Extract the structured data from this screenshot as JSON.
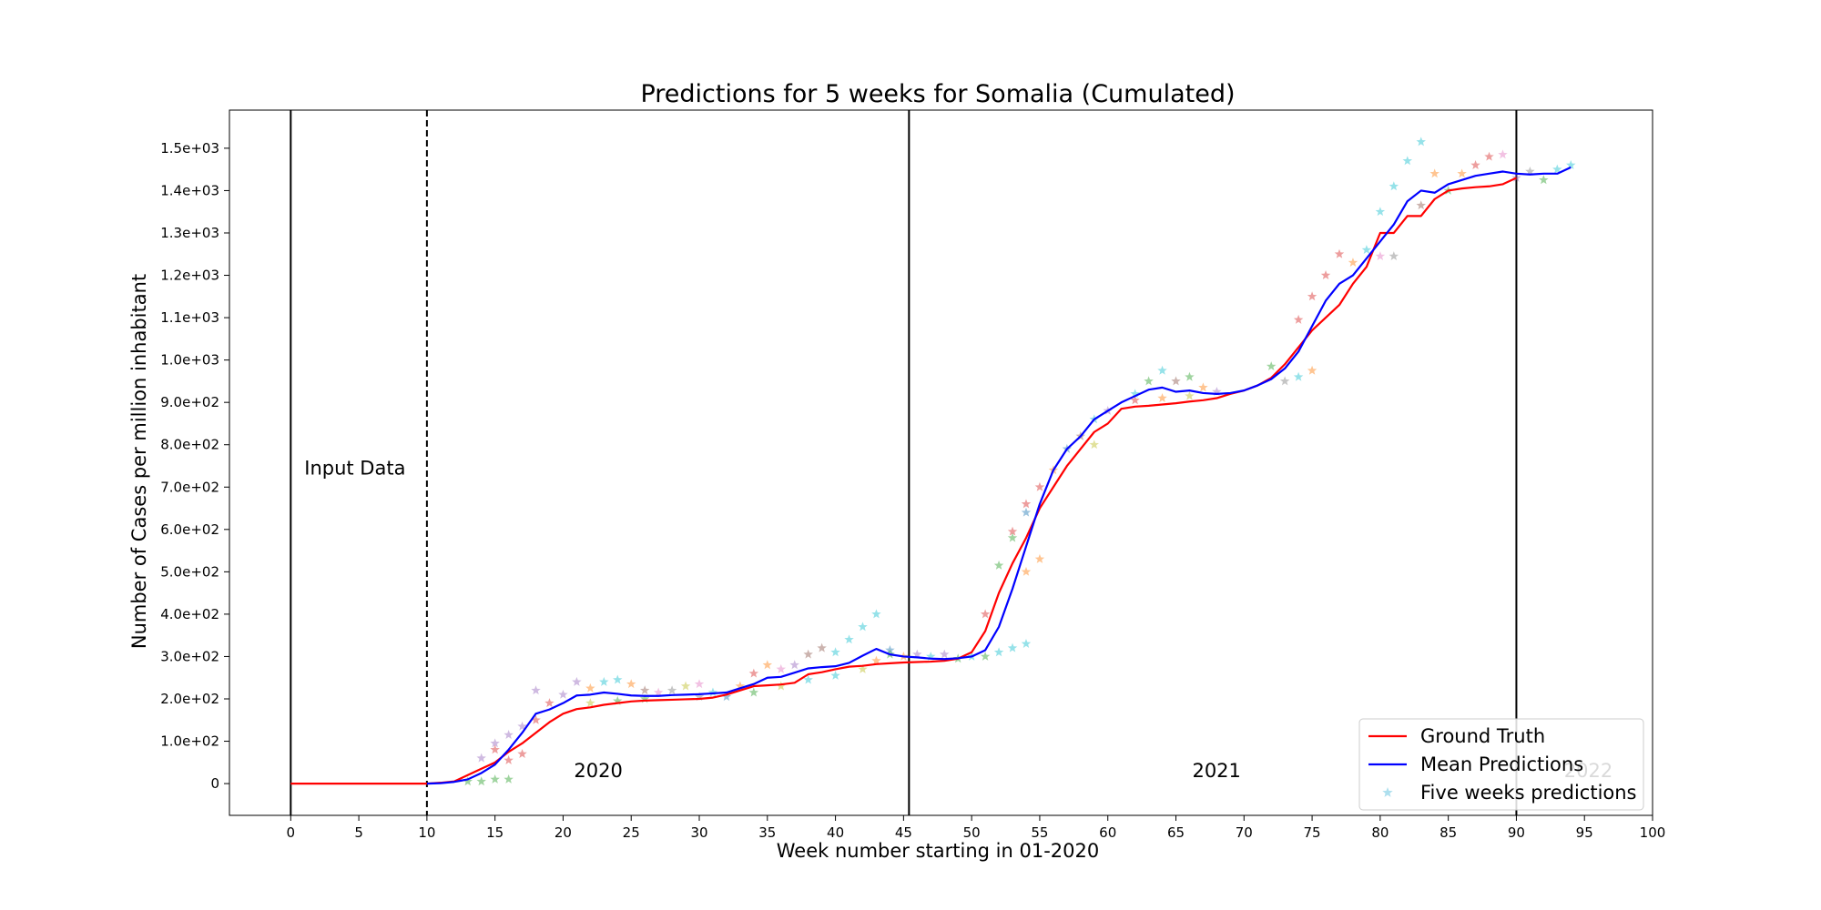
{
  "chart_data": {
    "type": "line",
    "title": "Predictions for 5 weeks for Somalia (Cumulated)",
    "xlabel": "Week number starting in 01-2020",
    "ylabel": "Number of Cases per million inhabitant",
    "xlim": [
      -4.5,
      100
    ],
    "ylim": [
      -75,
      1590
    ],
    "x_ticks": [
      0,
      5,
      10,
      15,
      20,
      25,
      30,
      35,
      40,
      45,
      50,
      55,
      60,
      65,
      70,
      75,
      80,
      85,
      90,
      95,
      100
    ],
    "y_ticks": [
      {
        "value": 0,
        "label": "0"
      },
      {
        "value": 100,
        "label": "1.0e+02"
      },
      {
        "value": 200,
        "label": "2.0e+02"
      },
      {
        "value": 300,
        "label": "3.0e+02"
      },
      {
        "value": 400,
        "label": "4.0e+02"
      },
      {
        "value": 500,
        "label": "5.0e+02"
      },
      {
        "value": 600,
        "label": "6.0e+02"
      },
      {
        "value": 700,
        "label": "7.0e+02"
      },
      {
        "value": 800,
        "label": "8.0e+02"
      },
      {
        "value": 900,
        "label": "9.0e+02"
      },
      {
        "value": 1000,
        "label": "1.0e+03"
      },
      {
        "value": 1100,
        "label": "1.1e+03"
      },
      {
        "value": 1200,
        "label": "1.2e+03"
      },
      {
        "value": 1300,
        "label": "1.3e+03"
      },
      {
        "value": 1400,
        "label": "1.4e+03"
      },
      {
        "value": 1500,
        "label": "1.5e+03"
      }
    ],
    "legend_position": "bottom-right",
    "grid": false,
    "vertical_lines": [
      {
        "x": 0,
        "style": "solid"
      },
      {
        "x": 10,
        "style": "dashed"
      },
      {
        "x": 45.4,
        "style": "solid"
      },
      {
        "x": 90,
        "style": "solid"
      }
    ],
    "annotations": [
      {
        "text": "Input Data",
        "x": 1,
        "y": 730,
        "color": "#000000"
      },
      {
        "text": "2020",
        "x": 20.8,
        "y": 15,
        "color": "#000000"
      },
      {
        "text": "2021",
        "x": 66.2,
        "y": 15,
        "color": "#000000"
      },
      {
        "text": "2022",
        "x": 93.5,
        "y": 15,
        "color": "#cfcfcf"
      }
    ],
    "series": [
      {
        "name": "Ground Truth",
        "color": "#ff0000",
        "x": [
          0,
          1,
          2,
          3,
          4,
          5,
          6,
          7,
          8,
          9,
          10,
          11,
          12,
          13,
          14,
          15,
          16,
          17,
          18,
          19,
          20,
          21,
          22,
          23,
          24,
          25,
          26,
          27,
          28,
          29,
          30,
          31,
          32,
          33,
          34,
          35,
          36,
          37,
          38,
          39,
          40,
          41,
          42,
          43,
          44,
          45,
          46,
          47,
          48,
          49,
          50,
          51,
          52,
          53,
          54,
          55,
          56,
          57,
          58,
          59,
          60,
          61,
          62,
          63,
          64,
          65,
          66,
          67,
          68,
          69,
          70,
          71,
          72,
          73,
          74,
          75,
          76,
          77,
          78,
          79,
          80,
          81,
          82,
          83,
          84,
          85,
          86,
          87,
          88,
          89,
          90
        ],
        "values": [
          0,
          0,
          0,
          0,
          0,
          0,
          0,
          0,
          0,
          0,
          0,
          2,
          5,
          20,
          35,
          50,
          75,
          95,
          120,
          145,
          165,
          176,
          180,
          186,
          190,
          194,
          196,
          197,
          198,
          199,
          200,
          203,
          210,
          220,
          230,
          232,
          234,
          238,
          258,
          263,
          270,
          276,
          278,
          282,
          284,
          286,
          287,
          288,
          290,
          295,
          310,
          360,
          450,
          520,
          580,
          650,
          700,
          750,
          790,
          830,
          850,
          885,
          890,
          892,
          895,
          898,
          902,
          905,
          910,
          920,
          928,
          940,
          958,
          990,
          1030,
          1070,
          1100,
          1130,
          1180,
          1220,
          1300,
          1300,
          1340,
          1340,
          1380,
          1400,
          1405,
          1408,
          1410,
          1415,
          1430
        ]
      },
      {
        "name": "Mean Predictions",
        "color": "#0000ff",
        "x": [
          10,
          11,
          12,
          13,
          14,
          15,
          16,
          17,
          18,
          19,
          20,
          21,
          22,
          23,
          24,
          25,
          26,
          27,
          28,
          29,
          30,
          31,
          32,
          33,
          34,
          35,
          36,
          37,
          38,
          39,
          40,
          41,
          42,
          43,
          44,
          45,
          46,
          47,
          48,
          49,
          50,
          51,
          52,
          53,
          54,
          55,
          56,
          57,
          58,
          59,
          60,
          61,
          62,
          63,
          64,
          65,
          66,
          67,
          68,
          69,
          70,
          71,
          72,
          73,
          74,
          75,
          76,
          77,
          78,
          79,
          80,
          81,
          82,
          83,
          84,
          85,
          86,
          87,
          88,
          89,
          90,
          91,
          92,
          93,
          94
        ],
        "values": [
          0,
          1,
          4,
          10,
          25,
          45,
          80,
          120,
          165,
          175,
          190,
          208,
          210,
          215,
          212,
          208,
          207,
          207,
          209,
          210,
          211,
          213,
          215,
          225,
          235,
          250,
          252,
          262,
          272,
          275,
          277,
          285,
          302,
          318,
          305,
          300,
          298,
          295,
          294,
          296,
          300,
          315,
          370,
          460,
          560,
          660,
          740,
          790,
          820,
          860,
          880,
          900,
          915,
          930,
          935,
          925,
          928,
          922,
          920,
          922,
          928,
          940,
          955,
          980,
          1020,
          1080,
          1140,
          1180,
          1200,
          1240,
          1280,
          1320,
          1375,
          1400,
          1395,
          1415,
          1425,
          1435,
          1440,
          1445,
          1440,
          1438,
          1440,
          1440,
          1455
        ]
      },
      {
        "name": "Five weeks predictions",
        "color": "#5bc0de",
        "points": [
          [
            13,
            5,
            "#2ca02c"
          ],
          [
            14,
            5,
            "#2ca02c"
          ],
          [
            15,
            10,
            "#2ca02c"
          ],
          [
            16,
            10,
            "#2ca02c"
          ],
          [
            14,
            60,
            "#9467bd"
          ],
          [
            15,
            95,
            "#9467bd"
          ],
          [
            16,
            115,
            "#9467bd"
          ],
          [
            17,
            135,
            "#9467bd"
          ],
          [
            18,
            220,
            "#9467bd"
          ],
          [
            15,
            80,
            "#d62728"
          ],
          [
            16,
            55,
            "#d62728"
          ],
          [
            17,
            70,
            "#d62728"
          ],
          [
            18,
            150,
            "#d62728"
          ],
          [
            19,
            190,
            "#d62728"
          ],
          [
            20,
            210,
            "#9467bd"
          ],
          [
            21,
            240,
            "#9467bd"
          ],
          [
            22,
            225,
            "#ff7f0e"
          ],
          [
            23,
            240,
            "#17becf"
          ],
          [
            24,
            245,
            "#17becf"
          ],
          [
            25,
            235,
            "#ff7f0e"
          ],
          [
            26,
            220,
            "#8c564b"
          ],
          [
            27,
            215,
            "#e377c2"
          ],
          [
            28,
            220,
            "#7f7f7f"
          ],
          [
            29,
            230,
            "#bcbd22"
          ],
          [
            30,
            235,
            "#e377c2"
          ],
          [
            31,
            215,
            "#17becf"
          ],
          [
            32,
            205,
            "#1f77b4"
          ],
          [
            33,
            230,
            "#ff7f0e"
          ],
          [
            34,
            260,
            "#d62728"
          ],
          [
            35,
            280,
            "#ff7f0e"
          ],
          [
            36,
            270,
            "#e377c2"
          ],
          [
            37,
            280,
            "#9467bd"
          ],
          [
            38,
            305,
            "#8c564b"
          ],
          [
            39,
            320,
            "#8c564b"
          ],
          [
            40,
            310,
            "#17becf"
          ],
          [
            41,
            340,
            "#17becf"
          ],
          [
            42,
            370,
            "#17becf"
          ],
          [
            43,
            400,
            "#17becf"
          ],
          [
            44,
            315,
            "#1f77b4"
          ],
          [
            22,
            190,
            "#bcbd22"
          ],
          [
            24,
            195,
            "#2ca02c"
          ],
          [
            26,
            200,
            "#2ca02c"
          ],
          [
            30,
            205,
            "#7f7f7f"
          ],
          [
            34,
            215,
            "#2ca02c"
          ],
          [
            36,
            230,
            "#bcbd22"
          ],
          [
            38,
            245,
            "#17becf"
          ],
          [
            40,
            255,
            "#17becf"
          ],
          [
            42,
            270,
            "#bcbd22"
          ],
          [
            43,
            290,
            "#ff7f0e"
          ],
          [
            44,
            305,
            "#2ca02c"
          ],
          [
            45,
            300,
            "#ff7f0e"
          ],
          [
            46,
            305,
            "#9467bd"
          ],
          [
            47,
            300,
            "#17becf"
          ],
          [
            48,
            305,
            "#9467bd"
          ],
          [
            49,
            295,
            "#2ca02c"
          ],
          [
            50,
            300,
            "#17becf"
          ],
          [
            51,
            300,
            "#2ca02c"
          ],
          [
            52,
            310,
            "#17becf"
          ],
          [
            53,
            320,
            "#17becf"
          ],
          [
            54,
            330,
            "#17becf"
          ],
          [
            51,
            400,
            "#d62728"
          ],
          [
            52,
            515,
            "#2ca02c"
          ],
          [
            53,
            595,
            "#d62728"
          ],
          [
            53,
            580,
            "#2ca02c"
          ],
          [
            54,
            500,
            "#ff7f0e"
          ],
          [
            54,
            640,
            "#1f77b4"
          ],
          [
            54,
            660,
            "#d62728"
          ],
          [
            55,
            530,
            "#ff7f0e"
          ],
          [
            55,
            700,
            "#d62728"
          ],
          [
            56,
            740,
            "#ff7f0e"
          ],
          [
            57,
            790,
            "#1f77b4"
          ],
          [
            58,
            820,
            "#8c564b"
          ],
          [
            59,
            800,
            "#bcbd22"
          ],
          [
            59,
            860,
            "#17becf"
          ],
          [
            60,
            880,
            "#9467bd"
          ],
          [
            62,
            920,
            "#17becf"
          ],
          [
            63,
            950,
            "#2ca02c"
          ],
          [
            64,
            975,
            "#17becf"
          ],
          [
            65,
            950,
            "#8c564b"
          ],
          [
            66,
            960,
            "#2ca02c"
          ],
          [
            67,
            935,
            "#ff7f0e"
          ],
          [
            68,
            925,
            "#9467bd"
          ],
          [
            62,
            905,
            "#d62728"
          ],
          [
            64,
            910,
            "#ff7f0e"
          ],
          [
            66,
            915,
            "#bcbd22"
          ],
          [
            72,
            985,
            "#2ca02c"
          ],
          [
            73,
            950,
            "#7f7f7f"
          ],
          [
            74,
            1095,
            "#d62728"
          ],
          [
            74,
            960,
            "#17becf"
          ],
          [
            75,
            975,
            "#ff7f0e"
          ],
          [
            75,
            1150,
            "#d62728"
          ],
          [
            76,
            1200,
            "#d62728"
          ],
          [
            77,
            1250,
            "#d62728"
          ],
          [
            78,
            1230,
            "#ff7f0e"
          ],
          [
            79,
            1260,
            "#17becf"
          ],
          [
            80,
            1350,
            "#17becf"
          ],
          [
            80,
            1245,
            "#e377c2"
          ],
          [
            81,
            1245,
            "#7f7f7f"
          ],
          [
            81,
            1410,
            "#17becf"
          ],
          [
            82,
            1470,
            "#17becf"
          ],
          [
            83,
            1515,
            "#17becf"
          ],
          [
            83,
            1365,
            "#8c564b"
          ],
          [
            84,
            1440,
            "#ff7f0e"
          ],
          [
            85,
            1400,
            "#2ca02c"
          ],
          [
            86,
            1440,
            "#ff7f0e"
          ],
          [
            87,
            1460,
            "#d62728"
          ],
          [
            88,
            1480,
            "#d62728"
          ],
          [
            89,
            1485,
            "#e377c2"
          ],
          [
            90,
            1430,
            "#9467bd"
          ],
          [
            91,
            1445,
            "#7f7f7f"
          ],
          [
            92,
            1425,
            "#2ca02c"
          ],
          [
            93,
            1450,
            "#17becf"
          ],
          [
            94,
            1460,
            "#17becf"
          ]
        ]
      }
    ]
  }
}
